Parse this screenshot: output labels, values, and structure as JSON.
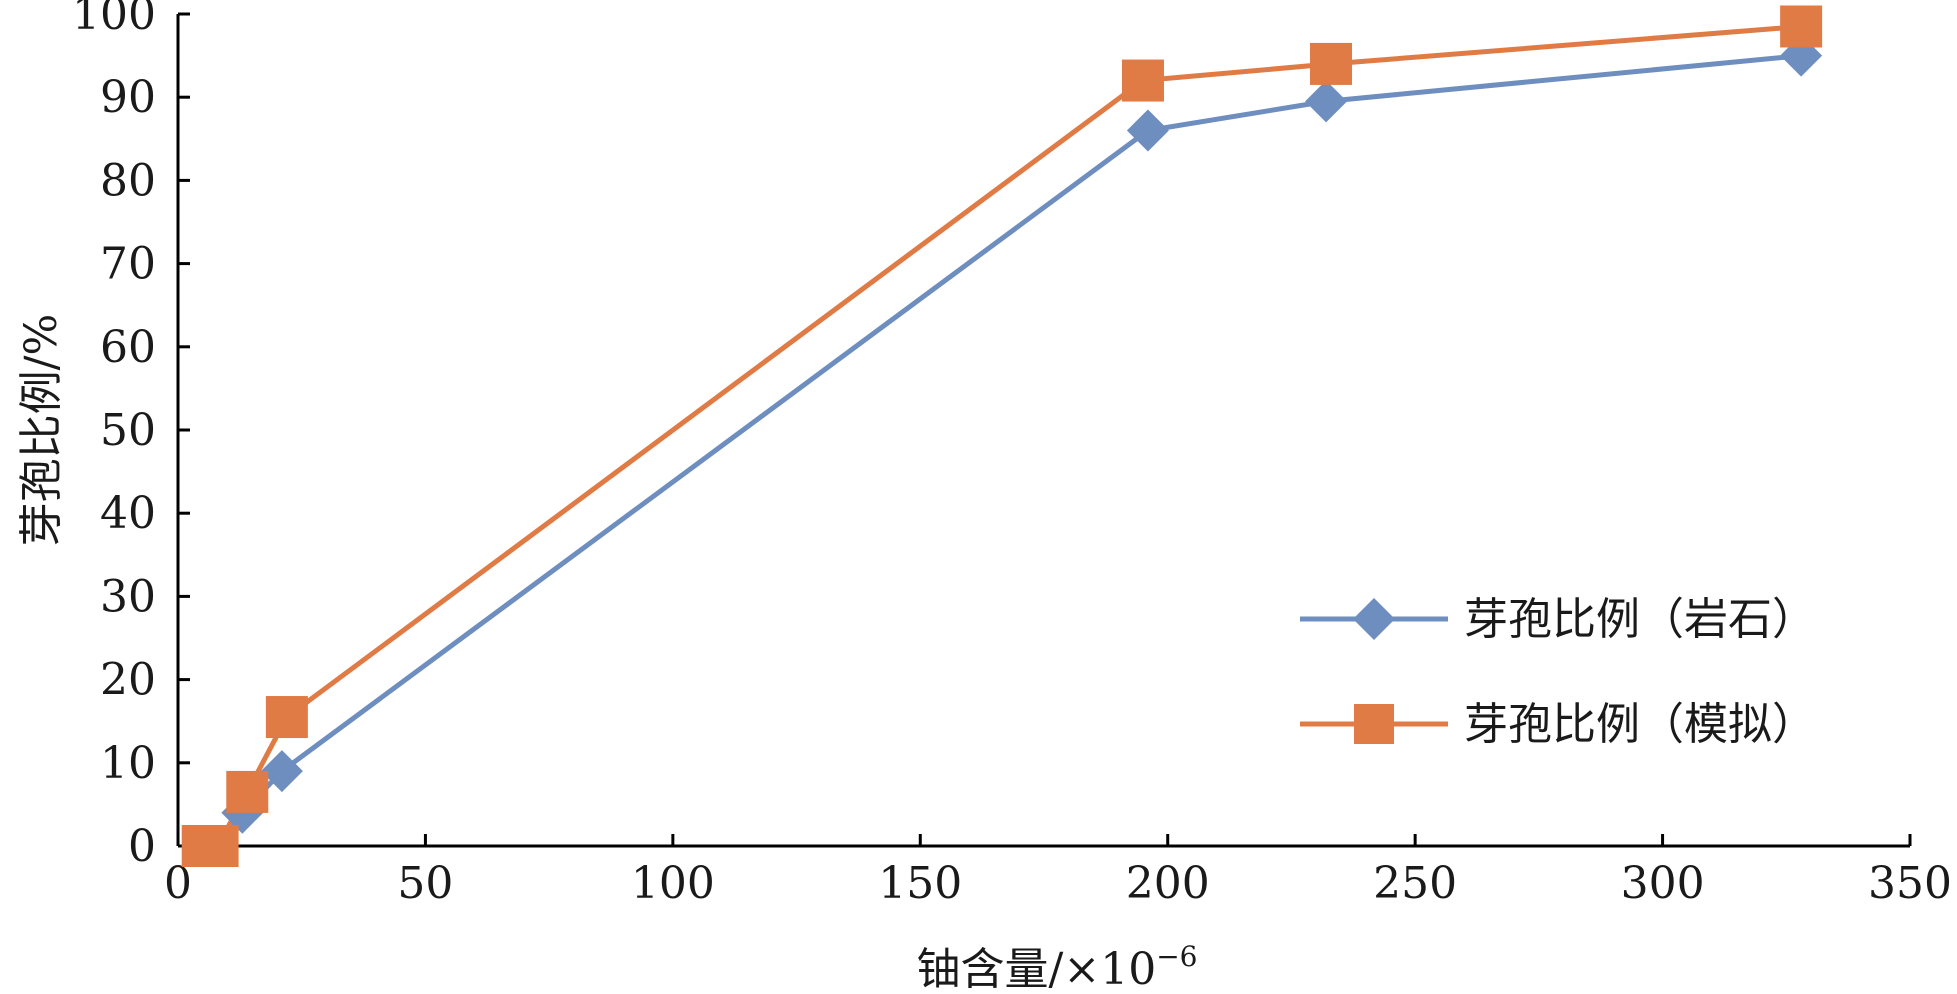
{
  "chart_data": {
    "type": "line",
    "xlabel": "铀含量/×10",
    "xlabel_superscript": "−6",
    "ylabel": "芽孢比例/%",
    "xlim": [
      0,
      350
    ],
    "ylim": [
      0,
      100
    ],
    "x_ticks": [
      "0",
      "50",
      "100",
      "150",
      "200",
      "250",
      "300",
      "350"
    ],
    "y_ticks": [
      "0",
      "10",
      "20",
      "30",
      "40",
      "50",
      "60",
      "70",
      "80",
      "90",
      "100"
    ],
    "grid": false,
    "legend_position": "right",
    "series": [
      {
        "name": "芽孢比例（岩石）",
        "color": "#6d8ebf",
        "marker": "diamond",
        "points": [
          [
            5,
            0
          ],
          [
            8,
            0
          ],
          [
            13,
            4
          ],
          [
            21,
            9
          ],
          [
            196,
            86
          ],
          [
            232,
            89.5
          ],
          [
            328,
            95
          ]
        ]
      },
      {
        "name": "芽孢比例（模拟）",
        "color": "#e07b45",
        "marker": "square",
        "points": [
          [
            5,
            0
          ],
          [
            8,
            0
          ],
          [
            14,
            6.5
          ],
          [
            22,
            15.5
          ],
          [
            195,
            92
          ],
          [
            233,
            94
          ],
          [
            328,
            98.5
          ]
        ]
      }
    ]
  }
}
